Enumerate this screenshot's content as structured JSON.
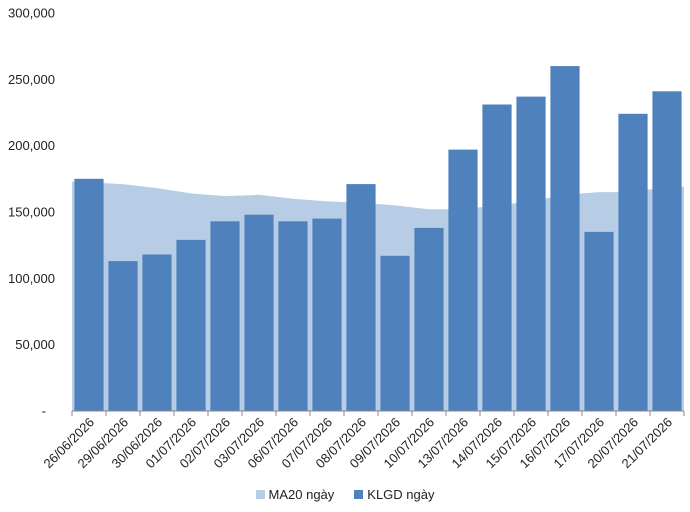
{
  "chart_data": {
    "type": "bar",
    "categories": [
      "26/06/2026",
      "29/06/2026",
      "30/06/2026",
      "01/07/2026",
      "02/07/2026",
      "03/07/2026",
      "06/07/2026",
      "07/07/2026",
      "08/07/2026",
      "09/07/2026",
      "10/07/2026",
      "13/07/2026",
      "14/07/2026",
      "15/07/2026",
      "16/07/2026",
      "17/07/2026",
      "20/07/2026",
      "21/07/2026"
    ],
    "series": [
      {
        "name": "MA20 ngày",
        "kind": "area",
        "color": "#b7cde6",
        "values": [
          173000,
          171000,
          168000,
          164000,
          162000,
          163000,
          160000,
          158000,
          157000,
          155000,
          152000,
          152000,
          155000,
          158000,
          163000,
          165000,
          165000,
          169000
        ]
      },
      {
        "name": "KLGD ngày",
        "kind": "bar",
        "color": "#4f81bd",
        "values": [
          175000,
          113000,
          118000,
          129000,
          143000,
          148000,
          143000,
          145000,
          171000,
          117000,
          138000,
          197000,
          231000,
          237000,
          260000,
          135000,
          224000,
          241000
        ]
      }
    ],
    "ylim": [
      0,
      300000
    ],
    "yticks": [
      {
        "value": 0,
        "label": "-"
      },
      {
        "value": 50000,
        "label": "50,000"
      },
      {
        "value": 100000,
        "label": "100,000"
      },
      {
        "value": 150000,
        "label": "150,000"
      },
      {
        "value": 200000,
        "label": "200,000"
      },
      {
        "value": 250000,
        "label": "250,000"
      },
      {
        "value": 300000,
        "label": "300,000"
      }
    ],
    "title": "",
    "xlabel": "",
    "ylabel": "",
    "grid": false,
    "legend_position": "bottom"
  }
}
